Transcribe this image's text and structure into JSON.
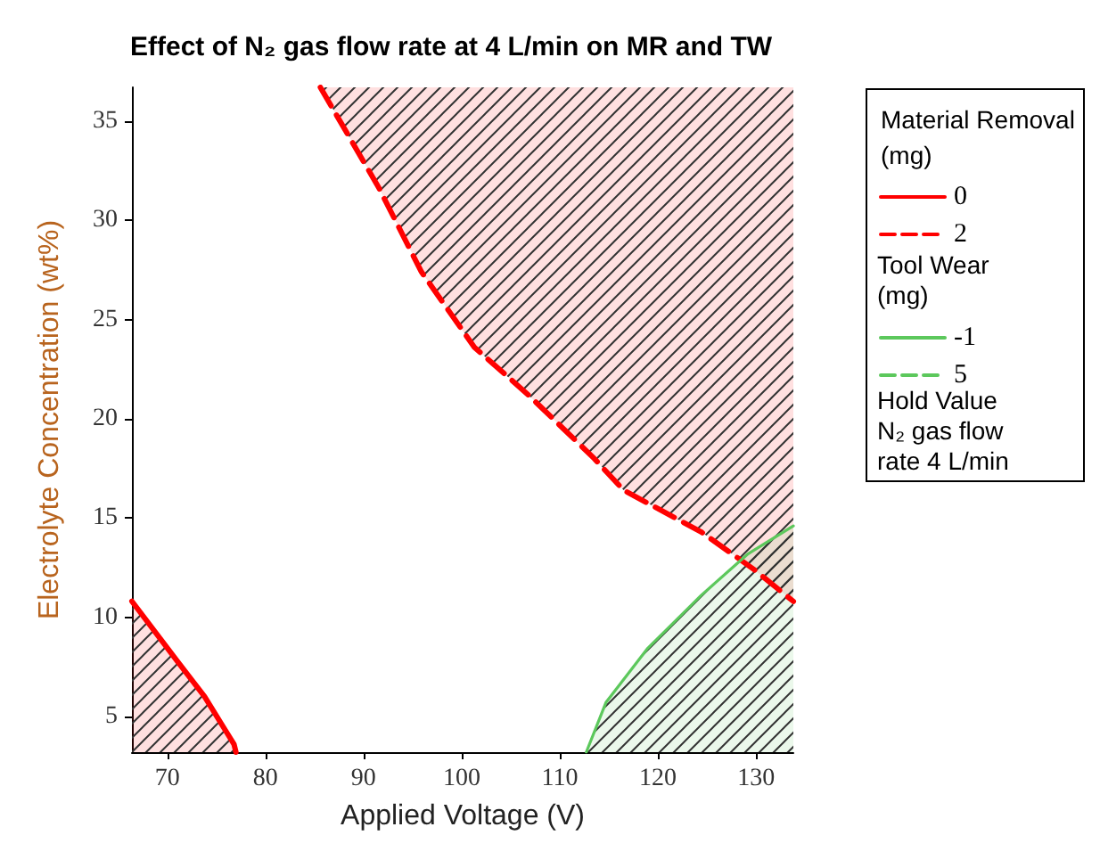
{
  "chart_data": {
    "type": "line",
    "title": "Effect of N₂ gas flow rate at 4 L/min on MR and TW",
    "xlabel": "Applied Voltage (V)",
    "ylabel": "Electrolyte Concentration (wt%)",
    "legend_title": "Material Removal (mg)",
    "annotations": [
      "Tool Wear (mg)",
      "Hold Value N₂ gas flow rate 4 L/min"
    ],
    "xlim": [
      66.4,
      133.8
    ],
    "ylim": [
      3.2,
      36.7
    ],
    "xticks": [
      70,
      80,
      90,
      100,
      110,
      120,
      130
    ],
    "yticks": [
      5,
      10,
      15,
      20,
      25,
      30,
      35
    ],
    "grid": false,
    "legend": "right",
    "marker": "none",
    "series": [
      {
        "name": "0",
        "color": "#ff0000",
        "line_style": "solid",
        "x": [
          66.4,
          71.0,
          73.8,
          76.8,
          77.0
        ],
        "values": [
          10.8,
          7.8,
          6.0,
          3.6,
          3.2
        ],
        "lower": [
          3.2,
          3.2,
          3.2,
          3.2,
          3.2
        ],
        "upper": [
          10.8,
          7.8,
          6.0,
          3.6,
          3.2
        ]
      },
      {
        "name": "2",
        "color": "#ff0000",
        "line_style": "dashed",
        "x": [
          85.6,
          91.6,
          95.9,
          101.3,
          106.8,
          113.5,
          116.5,
          124.4,
          129.8,
          133.8
        ],
        "values": [
          36.7,
          31.6,
          27.4,
          23.6,
          21.2,
          18.0,
          16.4,
          14.3,
          12.4,
          10.8
        ],
        "lower": [
          36.7,
          31.6,
          27.4,
          23.6,
          21.2,
          18.0,
          16.4,
          14.3,
          12.4,
          10.8
        ],
        "upper": [
          36.7,
          36.7,
          36.7,
          36.7,
          36.7,
          36.7,
          36.7,
          36.7,
          36.7,
          36.7
        ]
      },
      {
        "name": "-1",
        "color": "#5cc85c",
        "line_style": "solid",
        "x": [
          112.7,
          114.7,
          118.9,
          124.4,
          129.2,
          133.8
        ],
        "values": [
          3.2,
          5.7,
          8.4,
          11.1,
          13.2,
          14.6
        ],
        "lower": [
          3.2,
          3.2,
          3.2,
          3.2,
          3.2,
          3.2
        ],
        "upper": [
          3.2,
          5.7,
          8.4,
          11.1,
          13.2,
          14.6
        ]
      },
      {
        "name": "5",
        "color": "#5cc85c",
        "line_style": "dashed"
      }
    ]
  }
}
